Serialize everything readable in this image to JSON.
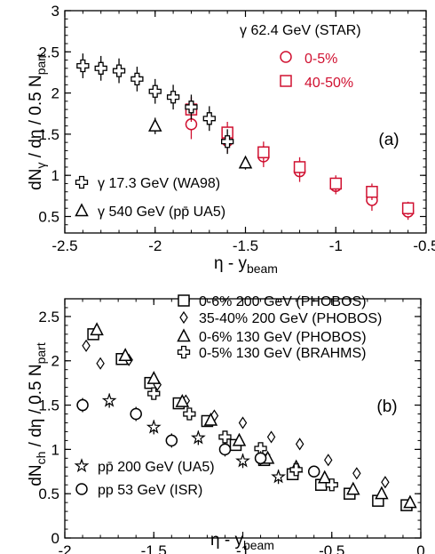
{
  "chart_data": [
    {
      "type": "scatter",
      "panel_label": "(a)",
      "xlim": [
        -2.5,
        -0.5
      ],
      "ylim": [
        0.3,
        3.0
      ],
      "xticks": [
        -2.5,
        -2,
        -1.5,
        -1,
        -0.5
      ],
      "yticks": [
        0.5,
        1,
        1.5,
        2,
        2.5,
        3
      ],
      "xticklabels": [
        "-2.5",
        "-2",
        "-1.5",
        "-1",
        "-0.5"
      ],
      "yticklabels": [
        "0.5",
        "1",
        "1.5",
        "2",
        "2.5",
        "3"
      ],
      "xlabel": {
        "main": "η - y",
        "sub": "beam"
      },
      "ylabel": {
        "a": "dN",
        "a_sub": "γ",
        "b": " / dη / 0.5 N",
        "b_sub": "part"
      },
      "legend_title": "γ 62.4 GeV (STAR)",
      "series": [
        {
          "name": "0-5%",
          "marker": "circle",
          "color": "#d01030",
          "points": [
            [
              -1.8,
              1.62,
              0.18
            ],
            [
              -1.6,
              1.42,
              0.14
            ],
            [
              -1.4,
              1.23,
              0.13
            ],
            [
              -1.2,
              1.05,
              0.13
            ],
            [
              -1.0,
              0.87,
              0.1
            ],
            [
              -0.8,
              0.7,
              0.13
            ],
            [
              -0.6,
              0.56,
              0.1
            ]
          ]
        },
        {
          "name": "40-50%",
          "marker": "square",
          "color": "#d01030",
          "points": [
            [
              -1.8,
              1.8,
              0.15
            ],
            [
              -1.6,
              1.52,
              0.13
            ],
            [
              -1.4,
              1.28,
              0.13
            ],
            [
              -1.2,
              1.1,
              0.12
            ],
            [
              -1.0,
              0.9,
              0.1
            ],
            [
              -0.8,
              0.8,
              0.1
            ],
            [
              -0.6,
              0.6,
              0.08
            ]
          ]
        },
        {
          "name": "γ 17.3 GeV (WA98)",
          "marker": "cross",
          "color": "#000000",
          "points": [
            [
              -2.4,
              2.33,
              0.15
            ],
            [
              -2.3,
              2.3,
              0.15
            ],
            [
              -2.2,
              2.27,
              0.15
            ],
            [
              -2.1,
              2.17,
              0.15
            ],
            [
              -2.0,
              2.02,
              0.15
            ],
            [
              -1.9,
              1.95,
              0.15
            ],
            [
              -1.8,
              1.83,
              0.15
            ],
            [
              -1.7,
              1.69,
              0.15
            ],
            [
              -1.6,
              1.41,
              0.15
            ]
          ]
        },
        {
          "name": "γ 540 GeV (pp̄ UA5)",
          "marker": "triangle",
          "color": "#000000",
          "points": [
            [
              -2.0,
              1.6,
              0.1
            ],
            [
              -1.5,
              1.15,
              0.08
            ]
          ]
        }
      ]
    },
    {
      "type": "scatter",
      "panel_label": "(b)",
      "xlim": [
        -2,
        0
      ],
      "ylim": [
        0,
        2.7
      ],
      "xticks": [
        -2,
        -1.5,
        -1,
        -0.5,
        0
      ],
      "yticks": [
        0,
        0.5,
        1,
        1.5,
        2,
        2.5
      ],
      "xticklabels": [
        "-2",
        "-1.5",
        "-1",
        "-0.5",
        "0"
      ],
      "yticklabels": [
        "0",
        "0.5",
        "1",
        "1.5",
        "2",
        "2.5"
      ],
      "xlabel": {
        "main": "η - y",
        "sub": "beam"
      },
      "ylabel": {
        "a": "dN",
        "a_sub": "ch",
        "b": " / dη / 0.5 N",
        "b_sub": "part"
      },
      "series": [
        {
          "name": "0-6% 200 GeV (PHOBOS)",
          "marker": "square",
          "color": "#000000",
          "points": [
            [
              -1.84,
              2.3,
              0
            ],
            [
              -1.68,
              2.02,
              0
            ],
            [
              -1.52,
              1.75,
              0
            ],
            [
              -1.36,
              1.52,
              0
            ],
            [
              -1.2,
              1.32,
              0
            ],
            [
              -1.04,
              1.05,
              0
            ],
            [
              -0.88,
              0.88,
              0
            ],
            [
              -0.72,
              0.72,
              0
            ],
            [
              -0.56,
              0.6,
              0
            ],
            [
              -0.4,
              0.5,
              0
            ],
            [
              -0.24,
              0.42,
              0
            ],
            [
              -0.08,
              0.37,
              0
            ]
          ]
        },
        {
          "name": "35-40% 200 GeV (PHOBOS)",
          "marker": "diamond",
          "color": "#000000",
          "points": [
            [
              -1.88,
              2.17,
              0
            ],
            [
              -1.8,
              1.97,
              0
            ],
            [
              -1.64,
              2.01,
              0
            ],
            [
              -1.48,
              1.73,
              0
            ],
            [
              -1.32,
              1.55,
              0
            ],
            [
              -1.16,
              1.38,
              0
            ],
            [
              -1.0,
              1.3,
              0
            ],
            [
              -0.84,
              1.14,
              0
            ],
            [
              -0.68,
              1.06,
              0
            ],
            [
              -0.52,
              0.88,
              0
            ],
            [
              -0.36,
              0.73,
              0
            ],
            [
              -0.2,
              0.63,
              0
            ]
          ]
        },
        {
          "name": "0-6% 130 GeV (PHOBOS)",
          "marker": "triangle",
          "color": "#000000",
          "points": [
            [
              -1.82,
              2.35,
              0
            ],
            [
              -1.66,
              2.06,
              0
            ],
            [
              -1.5,
              1.8,
              0
            ],
            [
              -1.34,
              1.54,
              0
            ],
            [
              -1.18,
              1.33,
              0
            ],
            [
              -1.02,
              1.1,
              0
            ],
            [
              -0.86,
              0.9,
              0
            ],
            [
              -0.7,
              0.8,
              0
            ],
            [
              -0.54,
              0.68,
              0
            ],
            [
              -0.38,
              0.55,
              0
            ],
            [
              -0.22,
              0.5,
              0
            ],
            [
              -0.06,
              0.4,
              0
            ]
          ]
        },
        {
          "name": "0-5% 130 GeV (BRAHMS)",
          "marker": "cross",
          "color": "#000000",
          "points": [
            [
              -1.5,
              1.63,
              0
            ],
            [
              -1.3,
              1.4,
              0
            ],
            [
              -1.1,
              1.14,
              0
            ],
            [
              -0.9,
              1.01,
              0
            ],
            [
              -0.7,
              0.77,
              0
            ],
            [
              -0.5,
              0.6,
              0
            ]
          ]
        },
        {
          "name": "pp̄ 200 GeV (UA5)",
          "marker": "star",
          "color": "#000000",
          "points": [
            [
              -1.75,
              1.55,
              0.08
            ],
            [
              -1.5,
              1.25,
              0.08
            ],
            [
              -1.25,
              1.13,
              0.08
            ],
            [
              -1.0,
              0.87,
              0.08
            ],
            [
              -0.8,
              0.69,
              0.08
            ]
          ]
        },
        {
          "name": "pp 53 GeV (ISR)",
          "marker": "circle",
          "color": "#000000",
          "points": [
            [
              -1.9,
              1.5,
              0.08
            ],
            [
              -1.6,
              1.4,
              0.08
            ],
            [
              -1.4,
              1.1,
              0.08
            ],
            [
              -1.1,
              1.0,
              0.08
            ],
            [
              -0.9,
              0.9,
              0.08
            ],
            [
              -0.6,
              0.75,
              0.06
            ]
          ]
        }
      ]
    }
  ]
}
